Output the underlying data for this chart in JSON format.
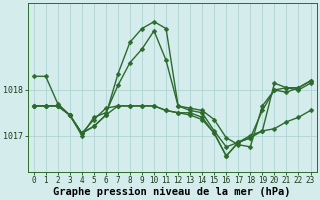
{
  "series": [
    {
      "x": [
        0,
        1,
        2,
        3,
        4,
        5,
        6,
        7,
        8,
        9,
        10,
        11,
        12,
        13,
        14,
        15,
        16,
        17,
        18,
        19,
        20,
        21,
        22,
        23
      ],
      "y": [
        1018.3,
        1018.3,
        1017.7,
        1017.45,
        1017.0,
        1017.4,
        1017.5,
        1018.1,
        1018.6,
        1018.9,
        1019.3,
        1018.65,
        1017.65,
        1017.6,
        1017.55,
        1017.35,
        1016.95,
        1016.8,
        1016.75,
        1017.65,
        1018.0,
        1018.05,
        1018.0,
        1018.15
      ],
      "color": "#2d6a2d"
    },
    {
      "x": [
        0,
        1,
        2,
        3,
        4,
        5,
        6,
        7,
        8,
        9,
        10,
        11,
        12,
        13,
        14,
        15,
        16,
        17,
        18,
        19,
        20,
        21,
        22,
        23
      ],
      "y": [
        1017.65,
        1017.65,
        1017.65,
        1017.45,
        1017.05,
        1017.2,
        1017.45,
        1017.65,
        1017.65,
        1017.65,
        1017.65,
        1017.55,
        1017.5,
        1017.5,
        1017.4,
        1017.05,
        1016.55,
        1016.85,
        1016.95,
        1017.55,
        1018.0,
        1017.95,
        1018.05,
        1018.2
      ],
      "color": "#2d6a2d"
    },
    {
      "x": [
        0,
        1,
        2,
        3,
        4,
        5,
        6,
        7,
        8,
        9,
        10,
        11,
        12,
        13,
        14,
        15,
        16,
        17,
        18,
        19,
        20,
        21,
        22,
        23
      ],
      "y": [
        1017.65,
        1017.65,
        1017.65,
        1017.45,
        1017.05,
        1017.35,
        1017.6,
        1017.65,
        1017.65,
        1017.65,
        1017.65,
        1017.55,
        1017.5,
        1017.45,
        1017.35,
        1017.05,
        1016.55,
        1016.85,
        1016.95,
        1017.1,
        1017.15,
        1017.3,
        1017.4,
        1017.55
      ],
      "color": "#2d6a2d"
    },
    {
      "x": [
        0,
        1,
        2,
        3,
        4,
        5,
        6,
        7,
        8,
        9,
        10,
        11,
        12,
        13,
        14,
        15,
        16,
        17,
        18,
        19,
        20,
        21,
        22,
        23
      ],
      "y": [
        1017.65,
        1017.65,
        1017.65,
        1017.45,
        1017.05,
        1017.2,
        1017.45,
        1018.35,
        1019.05,
        1019.35,
        1019.5,
        1019.35,
        1017.65,
        1017.55,
        1017.5,
        1017.1,
        1016.75,
        1016.85,
        1017.0,
        1017.1,
        1018.15,
        1018.05,
        1018.05,
        1018.2
      ],
      "color": "#2d6a2d"
    }
  ],
  "yticks": [
    1017.0,
    1018.0
  ],
  "ytick_labels": [
    "1017",
    "1018"
  ],
  "ylim": [
    1016.2,
    1019.9
  ],
  "xlim": [
    -0.5,
    23.5
  ],
  "xticks": [
    0,
    1,
    2,
    3,
    4,
    5,
    6,
    7,
    8,
    9,
    10,
    11,
    12,
    13,
    14,
    15,
    16,
    17,
    18,
    19,
    20,
    21,
    22,
    23
  ],
  "xlabel": "Graphe pression niveau de la mer (hPa)",
  "bg_color": "#d4ecec",
  "grid_color": "#aed4d4",
  "line_color": "#2d6a2d",
  "marker": "D",
  "marker_size": 2.5,
  "line_width": 1.0,
  "tick_fontsize": 6.0,
  "xlabel_fontsize": 7.5
}
